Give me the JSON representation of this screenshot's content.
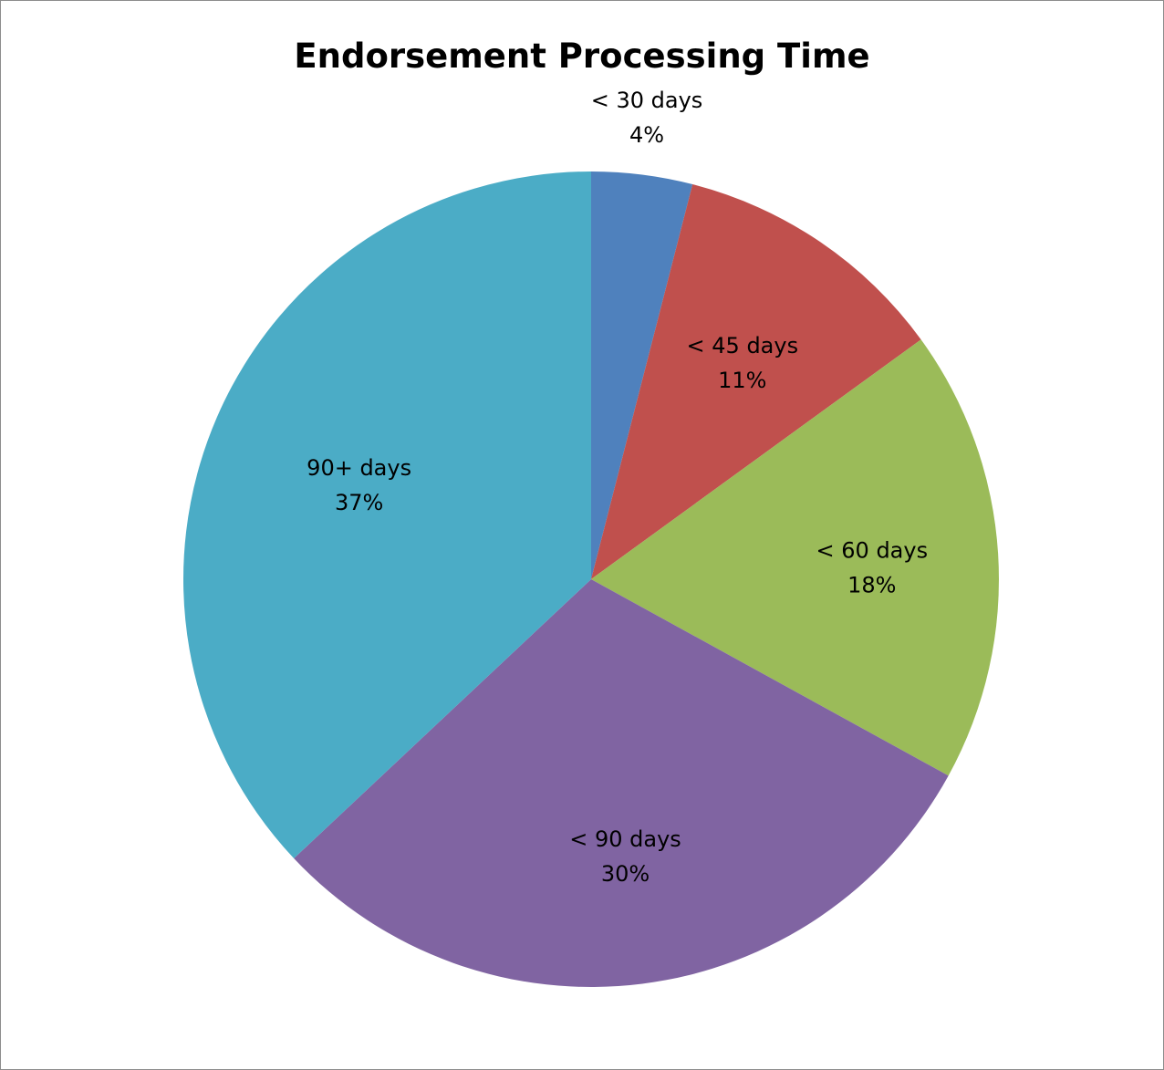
{
  "chart_data": {
    "type": "pie",
    "title": "Endorsement Processing Time",
    "start_angle": "12 o'clock",
    "direction": "clockwise",
    "categories": [
      "< 30 days",
      "< 45 days",
      "< 60 days",
      "< 90 days",
      "90+ days"
    ],
    "values": [
      4,
      11,
      18,
      30,
      37
    ],
    "value_labels": [
      "4%",
      "11%",
      "18%",
      "30%",
      "37%"
    ],
    "colors": [
      "#4f81bd",
      "#c0504d",
      "#9bbb59",
      "#8064a2",
      "#4bacc6"
    ],
    "legend": "none"
  }
}
